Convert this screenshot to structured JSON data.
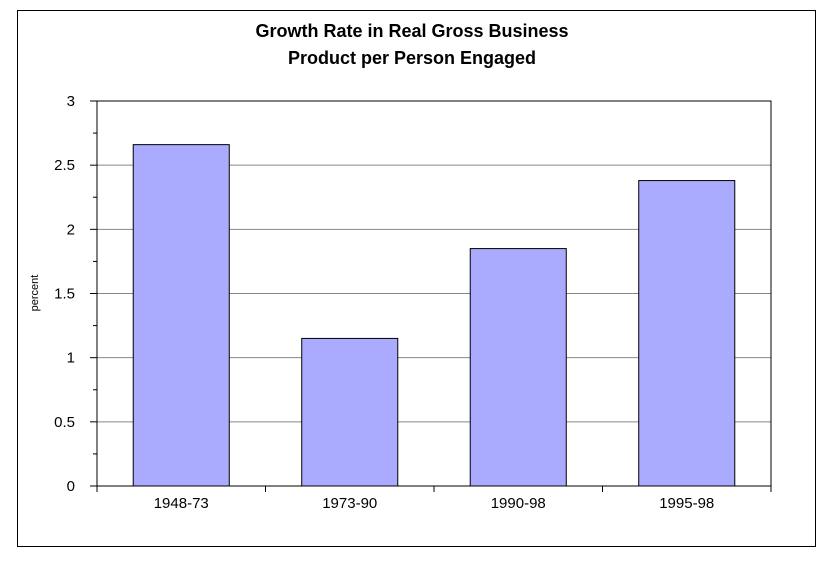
{
  "chart_data": {
    "type": "bar",
    "title": [
      "Growth Rate in Real Gross Business",
      "Product per Person Engaged"
    ],
    "ylabel": "percent",
    "xlabel": "",
    "categories": [
      "1948-73",
      "1973-90",
      "1990-98",
      "1995-98"
    ],
    "values": [
      2.66,
      1.15,
      1.85,
      2.38
    ],
    "ylim": [
      0,
      3
    ],
    "yticks": [
      "0",
      "0.5",
      "1",
      "1.5",
      "2",
      "2.5",
      "3"
    ],
    "grid": "horizontal",
    "bar_color": "#aaaaff"
  }
}
